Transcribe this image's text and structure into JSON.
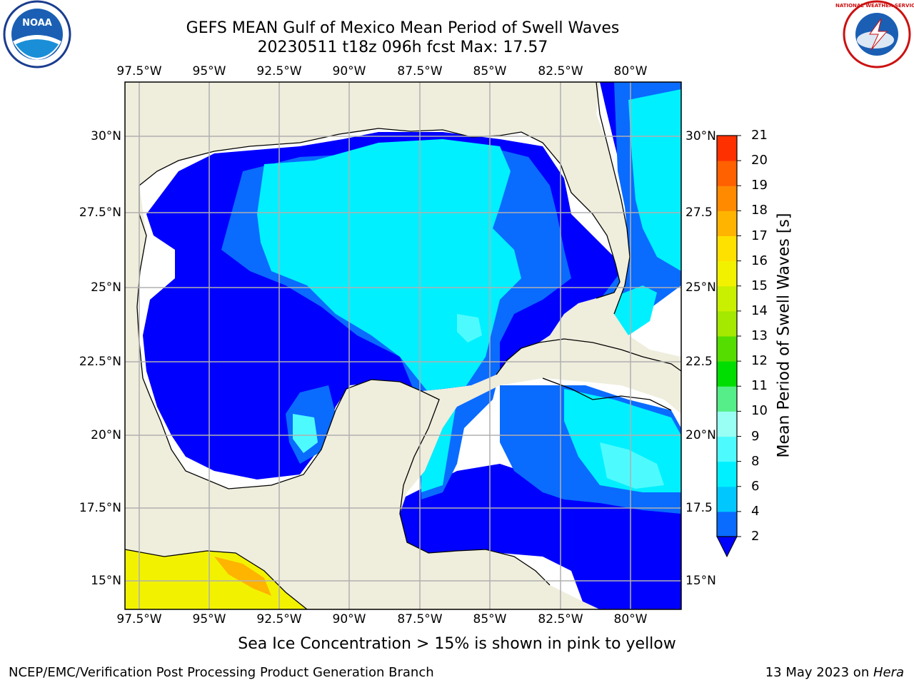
{
  "title_line1": "GEFS MEAN Gulf of Mexico Mean Period of Swell Waves",
  "title_line2": "20230511 t18z 096h fcst   Max: 17.57",
  "lon_labels": [
    "97.5°W",
    "95°W",
    "92.5°W",
    "90°W",
    "87.5°W",
    "85°W",
    "82.5°W",
    "80°W"
  ],
  "lat_labels_left": [
    "30°N",
    "27.5°N",
    "25°N",
    "22.5°N",
    "20°N",
    "17.5°N",
    "15°N"
  ],
  "lat_labels_right": [
    "30°N",
    "27.5",
    "25°N",
    "22.5",
    "20°N",
    "17.5",
    "15°N"
  ],
  "colorbar": {
    "label": "Mean Period of Swell Waves [s]",
    "ticks": [
      "2",
      "4",
      "6",
      "8",
      "9",
      "10",
      "11",
      "12",
      "13",
      "14",
      "15",
      "16",
      "17",
      "18",
      "19",
      "20",
      "21"
    ],
    "colors": [
      "#0a6bff",
      "#00c8ff",
      "#00f0ff",
      "#4dfbff",
      "#99fff4",
      "#55ee88",
      "#00dd00",
      "#55dd00",
      "#a5e800",
      "#c8f000",
      "#f2f200",
      "#ffe100",
      "#ffb400",
      "#ff8a00",
      "#ff6000",
      "#ff3000",
      "#ff0000"
    ],
    "below_color": "#0000ff"
  },
  "note": "Sea Ice Concentration > 15% is shown in pink to yellow",
  "footer_left": "NCEP/EMC/Verification Post Processing Product Generation Branch",
  "footer_right_prefix": "13 May 2023 on ",
  "footer_right_host": "Hera",
  "logos": {
    "left": "NOAA",
    "right": "NATIONAL WEATHER SERVICE"
  }
}
